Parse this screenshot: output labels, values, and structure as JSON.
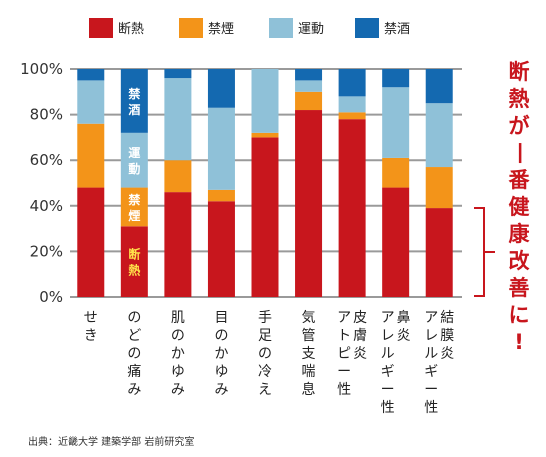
{
  "chart_data": {
    "type": "bar",
    "stacked": true,
    "ylim": [
      0,
      100
    ],
    "yticks": [
      "0%",
      "20%",
      "40%",
      "60%",
      "80%",
      "100%"
    ],
    "grid": true,
    "legend_position": "top",
    "categories": [
      "せき",
      "のどの痛み",
      "肌のかゆみ",
      "目のかゆみ",
      "手足の冷え",
      "気管支喘息",
      "皮膚炎アトピー性",
      "鼻炎アレルギー性",
      "結膜炎アレルギー性"
    ],
    "category_columns": [
      [
        "せき"
      ],
      [
        "のどの痛み"
      ],
      [
        "肌のかゆみ"
      ],
      [
        "目のかゆみ"
      ],
      [
        "手足の冷え"
      ],
      [
        "気管支喘息"
      ],
      [
        "皮膚炎",
        "アトピー性"
      ],
      [
        "鼻炎",
        "アレルギー性"
      ],
      [
        "結膜炎",
        "アレルギー性"
      ]
    ],
    "series": [
      {
        "name": "断熱",
        "color": "#c8161d",
        "values": [
          48,
          31,
          46,
          42,
          70,
          82,
          78,
          48,
          39
        ]
      },
      {
        "name": "禁煙",
        "color": "#f39419",
        "values": [
          28,
          17,
          14,
          5,
          2,
          8,
          3,
          13,
          18
        ]
      },
      {
        "name": "運動",
        "color": "#8fc1d8",
        "values": [
          19,
          24,
          36,
          36,
          28,
          5,
          7,
          31,
          28
        ]
      },
      {
        "name": "禁酒",
        "color": "#1469b0",
        "values": [
          5,
          28,
          4,
          17,
          0,
          5,
          12,
          8,
          15
        ]
      }
    ],
    "bar_labels": {
      "category_index": 1,
      "texts": [
        "断熱",
        "禁煙",
        "運動",
        "禁酒"
      ]
    },
    "annotation": "断熱が一番健康改善に!",
    "source": "出典：近畿大学 建築学部 岩前研究室"
  }
}
